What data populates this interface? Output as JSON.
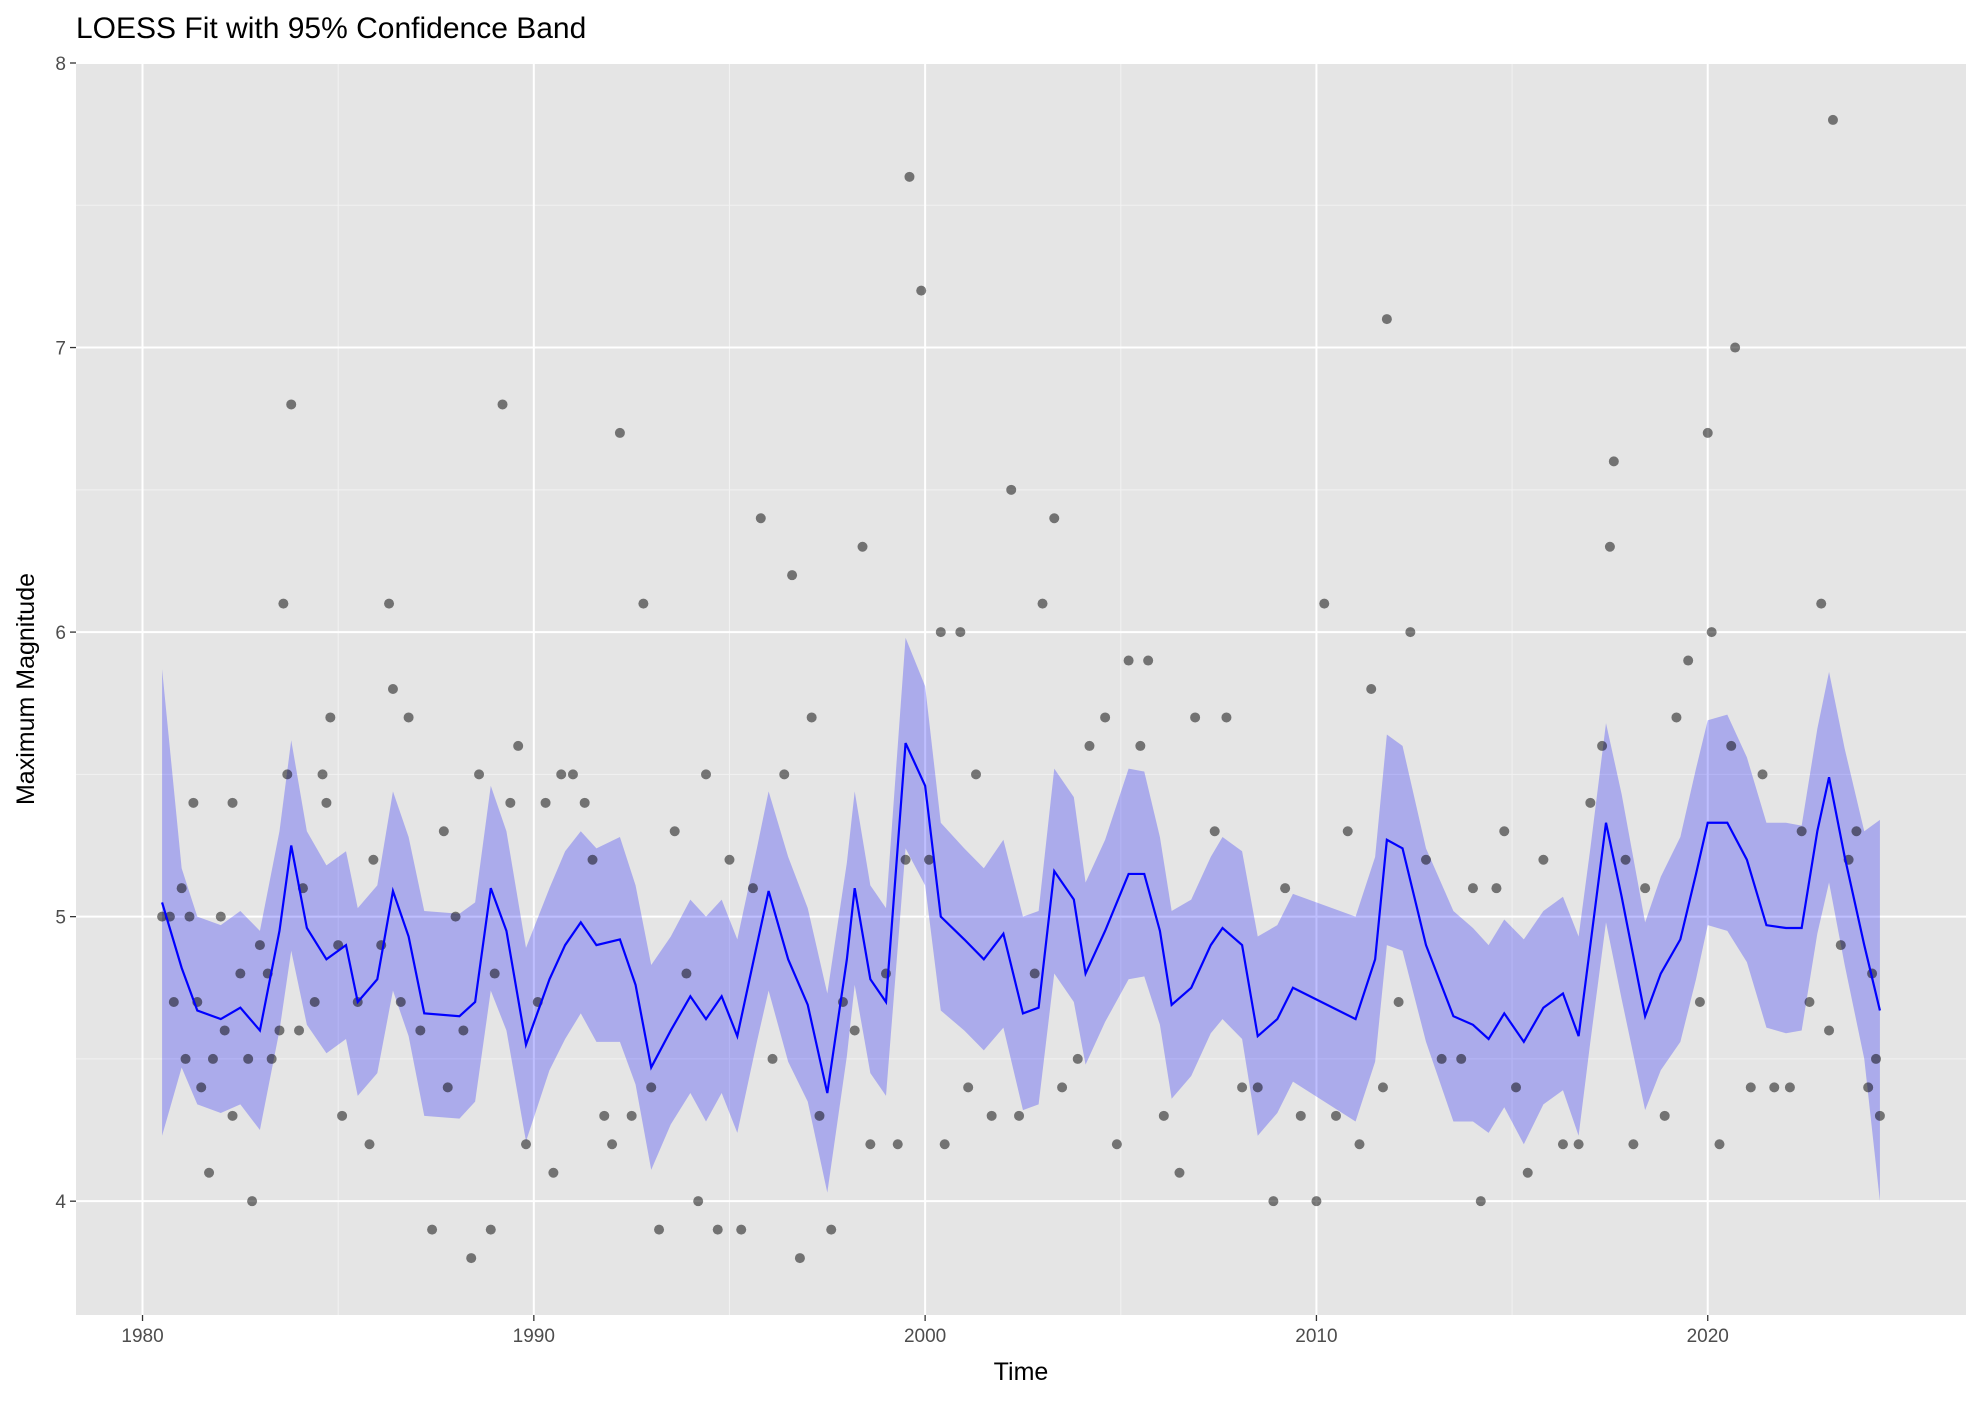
{
  "chart_data": {
    "type": "scatter",
    "title": "LOESS Fit with 95% Confidence Band",
    "x_label": "Time",
    "y_label": "Maximum Magnitude",
    "xlim": [
      1978.3,
      2026.6
    ],
    "ylim": [
      3.6,
      8.0
    ],
    "xticks": [
      1980,
      1990,
      2000,
      2010,
      2020
    ],
    "yticks": [
      4,
      5,
      6,
      7,
      8
    ],
    "grid": true,
    "points": {
      "color": "#000000",
      "opacity": 0.5,
      "x": [
        1980.5,
        1980.7,
        1980.8,
        1981.0,
        1981.1,
        1981.2,
        1981.3,
        1981.4,
        1981.5,
        1981.7,
        1981.8,
        1982.0,
        1982.1,
        1982.3,
        1982.3,
        1982.5,
        1982.7,
        1982.8,
        1983.0,
        1983.2,
        1983.3,
        1983.5,
        1983.6,
        1983.8,
        1983.7,
        1984.0,
        1984.1,
        1984.4,
        1984.6,
        1984.7,
        1984.8,
        1985.0,
        1985.1,
        1985.5,
        1985.8,
        1985.9,
        1986.1,
        1986.3,
        1986.4,
        1986.6,
        1986.8,
        1987.1,
        1987.4,
        1987.7,
        1987.8,
        1988.0,
        1988.2,
        1988.4,
        1988.6,
        1988.9,
        1989.0,
        1989.2,
        1989.4,
        1989.6,
        1989.8,
        1990.1,
        1990.3,
        1990.5,
        1990.7,
        1991.0,
        1991.3,
        1991.5,
        1991.8,
        1992.0,
        1992.2,
        1992.5,
        1992.8,
        1993.0,
        1993.2,
        1993.6,
        1993.9,
        1994.2,
        1994.4,
        1994.7,
        1995.0,
        1995.3,
        1995.6,
        1995.8,
        1996.1,
        1996.4,
        1996.6,
        1996.8,
        1997.1,
        1997.3,
        1997.6,
        1997.9,
        1998.2,
        1998.4,
        1998.6,
        1999.0,
        1999.3,
        1999.5,
        1999.6,
        1999.9,
        2000.1,
        2000.4,
        2000.5,
        2000.9,
        2001.1,
        2001.3,
        2001.7,
        2002.2,
        2002.4,
        2002.8,
        2003.0,
        2003.3,
        2003.5,
        2003.9,
        2004.2,
        2004.6,
        2004.9,
        2005.2,
        2005.5,
        2005.7,
        2006.1,
        2006.5,
        2006.9,
        2007.4,
        2007.7,
        2008.1,
        2008.5,
        2008.9,
        2009.2,
        2009.6,
        2010.0,
        2010.2,
        2010.5,
        2010.8,
        2011.1,
        2011.4,
        2011.7,
        2011.8,
        2012.1,
        2012.4,
        2012.8,
        2013.2,
        2013.7,
        2014.0,
        2014.2,
        2014.6,
        2014.8,
        2015.1,
        2015.4,
        2015.8,
        2016.3,
        2016.7,
        2017.0,
        2017.3,
        2017.5,
        2017.6,
        2017.9,
        2018.1,
        2018.4,
        2018.9,
        2019.2,
        2019.5,
        2019.8,
        2020.0,
        2020.1,
        2020.3,
        2020.6,
        2020.7,
        2021.1,
        2021.4,
        2021.7,
        2022.1,
        2022.4,
        2022.6,
        2022.9,
        2023.1,
        2023.2,
        2023.4,
        2023.6,
        2023.8,
        2024.1,
        2024.2,
        2024.3,
        2024.4
      ],
      "y": [
        5.0,
        5.0,
        4.7,
        5.1,
        4.5,
        5.0,
        5.4,
        4.7,
        4.4,
        4.1,
        4.5,
        5.0,
        4.6,
        4.3,
        5.4,
        4.8,
        4.5,
        4.0,
        4.9,
        4.8,
        4.5,
        4.6,
        6.1,
        6.8,
        5.5,
        4.6,
        5.1,
        4.7,
        5.5,
        5.4,
        5.7,
        4.9,
        4.3,
        4.7,
        4.2,
        5.2,
        4.9,
        6.1,
        5.8,
        4.7,
        5.7,
        4.6,
        3.9,
        5.3,
        4.4,
        5.0,
        4.6,
        3.8,
        5.5,
        3.9,
        4.8,
        6.8,
        5.4,
        5.6,
        4.2,
        4.7,
        5.4,
        4.1,
        5.5,
        5.5,
        5.4,
        5.2,
        4.3,
        4.2,
        6.7,
        4.3,
        6.1,
        4.4,
        3.9,
        5.3,
        4.8,
        4.0,
        5.5,
        3.9,
        5.2,
        3.9,
        5.1,
        6.4,
        4.5,
        5.5,
        6.2,
        3.8,
        5.7,
        4.3,
        3.9,
        4.7,
        4.6,
        6.3,
        4.2,
        4.8,
        4.2,
        5.2,
        7.6,
        7.2,
        5.2,
        6.0,
        4.2,
        6.0,
        4.4,
        5.5,
        4.3,
        6.5,
        4.3,
        4.8,
        6.1,
        6.4,
        4.4,
        4.5,
        5.6,
        5.7,
        4.2,
        5.9,
        5.6,
        5.9,
        4.3,
        4.1,
        5.7,
        5.3,
        5.7,
        4.4,
        4.4,
        4.0,
        5.1,
        4.3,
        4.0,
        6.1,
        4.3,
        5.3,
        4.2,
        5.8,
        4.4,
        7.1,
        4.7,
        6.0,
        5.2,
        4.5,
        4.5,
        5.1,
        4.0,
        5.1,
        5.3,
        4.4,
        4.1,
        5.2,
        4.2,
        4.2,
        5.4,
        5.6,
        6.3,
        6.6,
        5.2,
        4.2,
        5.1,
        4.3,
        5.7,
        5.9,
        4.7,
        6.7,
        6.0,
        4.2,
        5.6,
        7.0,
        4.4,
        5.5,
        4.4,
        4.4,
        5.3,
        4.7,
        6.1,
        4.6,
        7.8,
        4.9,
        5.2,
        5.3,
        4.4,
        4.8,
        4.5,
        4.3
      ]
    },
    "fit": {
      "color": "#0000ff",
      "band_color": "#0000ff",
      "band_opacity": 0.25,
      "x": [
        1980.5,
        1981.0,
        1981.4,
        1982.0,
        1982.5,
        1983.0,
        1983.5,
        1983.8,
        1984.2,
        1984.7,
        1985.2,
        1985.5,
        1986.0,
        1986.4,
        1986.8,
        1987.2,
        1988.1,
        1988.5,
        1988.9,
        1989.3,
        1989.8,
        1990.4,
        1990.8,
        1991.2,
        1991.6,
        1992.2,
        1992.6,
        1993.0,
        1993.5,
        1994.0,
        1994.4,
        1994.8,
        1995.2,
        1995.7,
        1996.0,
        1996.5,
        1997.0,
        1997.5,
        1998.0,
        1998.2,
        1998.6,
        1999.0,
        1999.5,
        2000.0,
        2000.4,
        2001.0,
        2001.5,
        2002.0,
        2002.5,
        2002.9,
        2003.3,
        2003.8,
        2004.1,
        2004.6,
        2005.2,
        2005.6,
        2006.0,
        2006.3,
        2006.8,
        2007.3,
        2007.6,
        2008.1,
        2008.5,
        2009.0,
        2009.4,
        2011.0,
        2011.5,
        2011.8,
        2012.2,
        2012.8,
        2013.5,
        2014.0,
        2014.4,
        2014.8,
        2015.3,
        2015.8,
        2016.3,
        2016.7,
        2017.0,
        2017.4,
        2017.8,
        2018.4,
        2018.8,
        2019.3,
        2019.7,
        2020.0,
        2020.5,
        2021.0,
        2021.5,
        2022.0,
        2022.4,
        2022.8,
        2023.1,
        2023.5,
        2024.0,
        2024.4
      ],
      "y": [
        5.05,
        4.82,
        4.67,
        4.64,
        4.68,
        4.6,
        4.95,
        5.25,
        4.96,
        4.85,
        4.9,
        4.7,
        4.78,
        5.09,
        4.93,
        4.66,
        4.65,
        4.7,
        5.1,
        4.95,
        4.55,
        4.78,
        4.9,
        4.98,
        4.9,
        4.92,
        4.76,
        4.47,
        4.6,
        4.72,
        4.64,
        4.72,
        4.58,
        4.9,
        5.09,
        4.85,
        4.69,
        4.38,
        4.85,
        5.1,
        4.78,
        4.7,
        5.61,
        5.46,
        5.0,
        4.92,
        4.85,
        4.94,
        4.66,
        4.68,
        5.16,
        5.06,
        4.8,
        4.95,
        5.15,
        5.15,
        4.95,
        4.69,
        4.75,
        4.9,
        4.96,
        4.9,
        4.58,
        4.64,
        4.75,
        4.64,
        4.85,
        5.27,
        5.24,
        4.9,
        4.65,
        4.62,
        4.57,
        4.66,
        4.56,
        4.68,
        4.73,
        4.58,
        4.9,
        5.33,
        5.07,
        4.65,
        4.8,
        4.92,
        5.15,
        5.33,
        5.33,
        5.2,
        4.97,
        4.96,
        4.96,
        5.3,
        5.49,
        5.21,
        4.9,
        4.67
      ],
      "lower": [
        4.23,
        4.47,
        4.34,
        4.31,
        4.34,
        4.25,
        4.6,
        4.88,
        4.62,
        4.52,
        4.57,
        4.37,
        4.45,
        4.74,
        4.58,
        4.3,
        4.29,
        4.35,
        4.74,
        4.6,
        4.21,
        4.46,
        4.57,
        4.66,
        4.56,
        4.56,
        4.41,
        4.11,
        4.27,
        4.38,
        4.28,
        4.38,
        4.24,
        4.56,
        4.74,
        4.49,
        4.35,
        4.03,
        4.51,
        4.76,
        4.45,
        4.37,
        5.24,
        5.11,
        4.67,
        4.6,
        4.53,
        4.61,
        4.32,
        4.34,
        4.8,
        4.7,
        4.48,
        4.63,
        4.78,
        4.79,
        4.62,
        4.36,
        4.44,
        4.59,
        4.64,
        4.57,
        4.23,
        4.31,
        4.42,
        4.28,
        4.49,
        4.9,
        4.88,
        4.56,
        4.28,
        4.28,
        4.24,
        4.33,
        4.2,
        4.34,
        4.39,
        4.23,
        4.56,
        4.98,
        4.71,
        4.32,
        4.46,
        4.56,
        4.78,
        4.97,
        4.95,
        4.84,
        4.61,
        4.59,
        4.6,
        4.94,
        5.12,
        4.83,
        4.5,
        4.0
      ],
      "upper": [
        5.87,
        5.17,
        5.0,
        4.97,
        5.02,
        4.95,
        5.3,
        5.62,
        5.3,
        5.18,
        5.23,
        5.03,
        5.11,
        5.44,
        5.28,
        5.02,
        5.01,
        5.05,
        5.46,
        5.3,
        4.89,
        5.1,
        5.23,
        5.3,
        5.24,
        5.28,
        5.11,
        4.83,
        4.93,
        5.06,
        5.0,
        5.06,
        4.92,
        5.24,
        5.44,
        5.21,
        5.03,
        4.73,
        5.19,
        5.44,
        5.11,
        5.03,
        5.98,
        5.81,
        5.33,
        5.24,
        5.17,
        5.27,
        5.0,
        5.02,
        5.52,
        5.42,
        5.12,
        5.27,
        5.52,
        5.51,
        5.28,
        5.02,
        5.06,
        5.21,
        5.28,
        5.23,
        4.93,
        4.97,
        5.08,
        5.0,
        5.21,
        5.64,
        5.6,
        5.24,
        5.02,
        4.96,
        4.9,
        4.99,
        4.92,
        5.02,
        5.07,
        4.93,
        5.24,
        5.68,
        5.43,
        4.98,
        5.14,
        5.28,
        5.52,
        5.69,
        5.71,
        5.56,
        5.33,
        5.33,
        5.32,
        5.66,
        5.86,
        5.59,
        5.3,
        5.34
      ]
    }
  }
}
